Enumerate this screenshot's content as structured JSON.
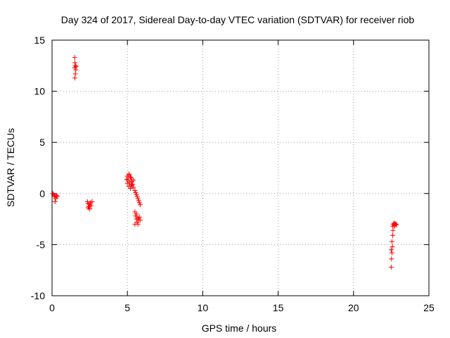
{
  "chart_data": {
    "type": "scatter",
    "title": "Day 324 of 2017, Sidereal Day-to-day VTEC variation (SDTVAR) for receiver riob",
    "xlabel": "GPS time / hours",
    "ylabel": "SDTVAR / TECUs",
    "xlim": [
      0,
      25
    ],
    "ylim": [
      -10,
      15
    ],
    "xticks": [
      0,
      5,
      10,
      15,
      20,
      25
    ],
    "yticks": [
      -10,
      -5,
      0,
      5,
      10,
      15
    ],
    "grid": true,
    "marker": "+",
    "series": [
      {
        "name": "SDTVAR",
        "color": "#ff0000",
        "points": [
          [
            0.05,
            0.0
          ],
          [
            0.1,
            -0.1
          ],
          [
            0.15,
            -0.3
          ],
          [
            0.2,
            -0.2
          ],
          [
            0.25,
            -0.5
          ],
          [
            0.3,
            -0.2
          ],
          [
            0.2,
            -0.8
          ],
          [
            0.35,
            -0.3
          ],
          [
            1.5,
            13.3
          ],
          [
            1.52,
            12.8
          ],
          [
            1.55,
            12.5
          ],
          [
            1.5,
            12.3
          ],
          [
            1.58,
            12.1
          ],
          [
            1.55,
            11.7
          ],
          [
            1.52,
            11.3
          ],
          [
            1.6,
            12.4
          ],
          [
            2.35,
            -0.8
          ],
          [
            2.4,
            -1.0
          ],
          [
            2.45,
            -1.3
          ],
          [
            2.5,
            -1.1
          ],
          [
            2.55,
            -0.9
          ],
          [
            2.6,
            -1.2
          ],
          [
            2.5,
            -1.5
          ],
          [
            2.65,
            -0.8
          ],
          [
            2.4,
            -1.4
          ],
          [
            4.95,
            1.4
          ],
          [
            5.0,
            1.7
          ],
          [
            5.05,
            1.3
          ],
          [
            5.1,
            1.9
          ],
          [
            5.15,
            1.1
          ],
          [
            5.2,
            1.6
          ],
          [
            5.25,
            1.5
          ],
          [
            5.3,
            1.2
          ],
          [
            5.35,
            0.9
          ],
          [
            5.4,
            1.3
          ],
          [
            5.1,
            0.7
          ],
          [
            5.2,
            0.5
          ],
          [
            5.3,
            0.8
          ],
          [
            5.4,
            0.6
          ],
          [
            5.5,
            0.3
          ],
          [
            5.55,
            0.1
          ],
          [
            5.6,
            -0.1
          ],
          [
            5.65,
            -0.3
          ],
          [
            5.7,
            -0.5
          ],
          [
            5.75,
            -0.7
          ],
          [
            5.8,
            -0.9
          ],
          [
            5.85,
            -1.1
          ],
          [
            5.0,
            1.0
          ],
          [
            5.12,
            1.8
          ],
          [
            5.25,
            0.9
          ],
          [
            5.5,
            -1.8
          ],
          [
            5.55,
            -2.2
          ],
          [
            5.6,
            -2.5
          ],
          [
            5.65,
            -2.8
          ],
          [
            5.7,
            -3.0
          ],
          [
            5.75,
            -2.6
          ],
          [
            5.8,
            -2.3
          ],
          [
            5.85,
            -2.6
          ],
          [
            5.5,
            -3.0
          ],
          [
            5.6,
            -2.0
          ],
          [
            5.7,
            -2.4
          ],
          [
            22.5,
            -7.2
          ],
          [
            22.52,
            -6.4
          ],
          [
            22.55,
            -5.8
          ],
          [
            22.5,
            -5.5
          ],
          [
            22.58,
            -5.2
          ],
          [
            22.55,
            -4.7
          ],
          [
            22.6,
            -4.1
          ],
          [
            22.62,
            -3.6
          ],
          [
            22.6,
            -3.2
          ],
          [
            22.65,
            -3.0
          ],
          [
            22.7,
            -3.1
          ],
          [
            22.75,
            -2.9
          ],
          [
            22.8,
            -3.0
          ],
          [
            22.85,
            -3.05
          ],
          [
            22.68,
            -2.95
          ],
          [
            22.72,
            -3.2
          ]
        ]
      }
    ]
  }
}
